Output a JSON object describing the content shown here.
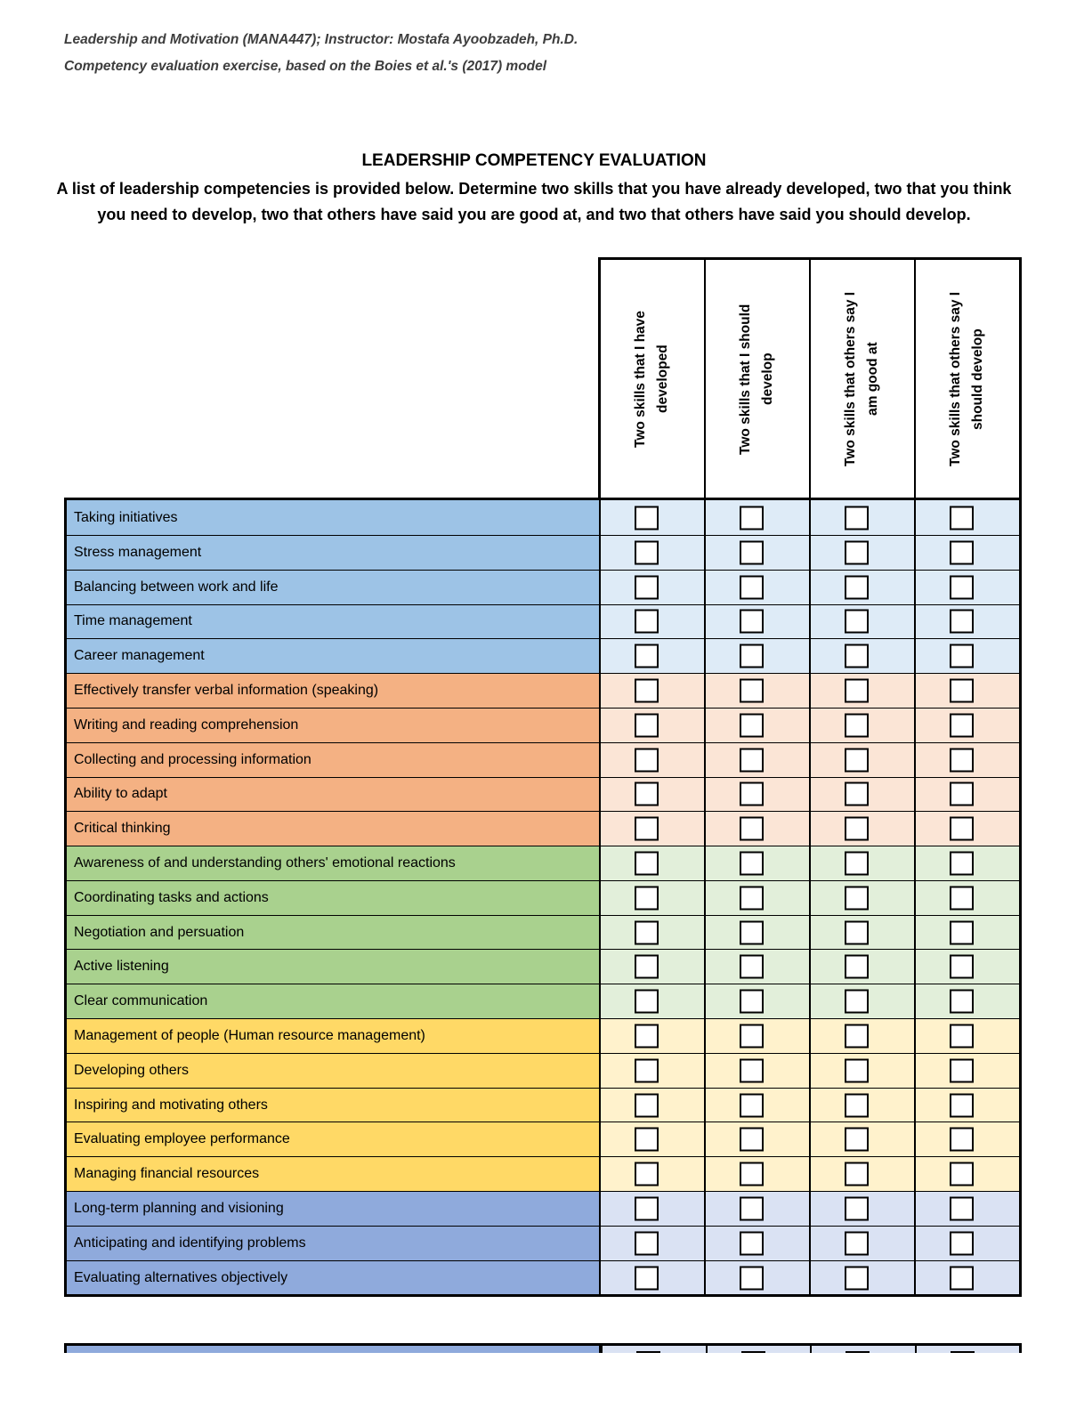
{
  "doc": {
    "course_line": "Leadership and Motivation (MANA447); Instructor: Mostafa Ayoobzadeh, Ph.D.",
    "exercise_line": "Competency evaluation exercise, based on the Boies et al.'s (2017) model",
    "title": "LEADERSHIP COMPETENCY EVALUATION",
    "instructions": "A list of leadership competencies is provided below. Determine two skills that you have already developed, two that you think you need to develop, two that others have said you are good at, and two that others have said you should develop."
  },
  "table": {
    "columns": [
      {
        "label": "Two skills that I have developed"
      },
      {
        "label": "Two skills that I should develop"
      },
      {
        "label": "Two skills that others say I am good at"
      },
      {
        "label": "Two skills that others say I should develop"
      }
    ],
    "checkbox_state": "unchecked",
    "groups": [
      {
        "name": "personal-management",
        "color": "#9DC3E6",
        "tint": "#DEEBF7",
        "rows": [
          "Taking initiatives",
          "Stress management",
          "Balancing between work and life",
          "Time management",
          "Career management"
        ]
      },
      {
        "name": "information-cognitive",
        "color": "#F4B183",
        "tint": "#FBE5D6",
        "rows": [
          "Effectively transfer verbal information (speaking)",
          "Writing and reading comprehension",
          "Collecting and processing information",
          "Ability to adapt",
          "Critical thinking"
        ]
      },
      {
        "name": "interpersonal",
        "color": "#A9D18E",
        "tint": "#E2EFDA",
        "rows": [
          "Awareness of and understanding others' emotional reactions",
          "Coordinating tasks and actions",
          "Negotiation and persuation",
          "Active listening",
          "Clear communication"
        ]
      },
      {
        "name": "people-management",
        "color": "#FFD966",
        "tint": "#FFF2CC",
        "rows": [
          "Management of people (Human resource management)",
          "Developing others",
          "Inspiring and motivating others",
          "Evaluating employee performance",
          "Managing financial resources"
        ]
      },
      {
        "name": "strategic",
        "color": "#8FAADC",
        "tint": "#DAE2F3",
        "rows": [
          "Long-term planning and visioning",
          "Anticipating and identifying problems",
          "Evaluating alternatives objectively"
        ]
      }
    ]
  }
}
